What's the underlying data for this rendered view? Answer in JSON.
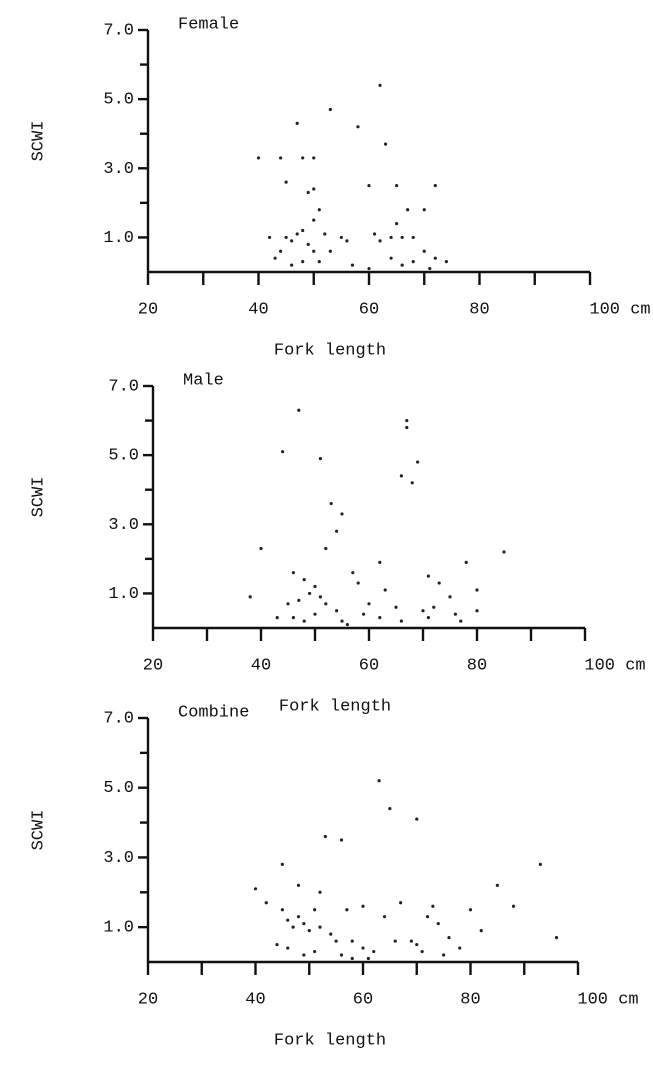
{
  "chart_data": [
    {
      "type": "scatter",
      "title": "Female",
      "x_label": "Fork length",
      "y_label": "SCWI",
      "color": "#222",
      "xlim": [
        20,
        100
      ],
      "ylim": [
        0,
        7
      ],
      "xticks": [
        20,
        40,
        60,
        80,
        {
          "value": 100,
          "label": "100 cm"
        }
      ],
      "xminorticks": [
        30,
        50,
        70,
        90
      ],
      "yticks": [
        {
          "value": 1,
          "label": "1.0"
        },
        {
          "value": 3,
          "label": "3.0"
        },
        {
          "value": 5,
          "label": "5.0"
        },
        {
          "value": 7,
          "label": "7.0"
        }
      ],
      "yminorticks": [
        2,
        4,
        6
      ],
      "x": [
        40,
        44,
        45,
        48,
        50,
        47,
        53,
        58,
        62,
        63,
        60,
        65,
        72,
        67,
        70,
        50,
        49,
        51,
        50,
        48,
        52,
        45,
        46,
        44,
        43,
        46,
        47,
        49,
        50,
        51,
        53,
        55,
        57,
        61,
        62,
        64,
        66,
        68,
        65,
        64,
        66,
        68,
        70,
        72,
        74,
        56,
        48,
        42,
        60,
        71
      ],
      "values": [
        3.3,
        3.3,
        2.6,
        3.3,
        3.3,
        4.3,
        4.7,
        4.2,
        5.4,
        3.7,
        2.5,
        2.5,
        2.5,
        1.8,
        1.8,
        2.4,
        2.3,
        1.8,
        1.5,
        1.2,
        1.1,
        1.0,
        0.9,
        0.6,
        0.4,
        0.2,
        1.1,
        0.8,
        0.6,
        0.3,
        0.6,
        1.0,
        0.2,
        1.1,
        0.9,
        1.0,
        1.0,
        1.0,
        1.4,
        0.4,
        0.2,
        0.3,
        0.6,
        0.4,
        0.3,
        0.9,
        0.3,
        1.0,
        0.1,
        0.1
      ]
    },
    {
      "type": "scatter",
      "title": "Male",
      "x_label": "Fork length",
      "y_label": "SCWI",
      "color": "#222",
      "xlim": [
        20,
        100
      ],
      "ylim": [
        0,
        7
      ],
      "xticks": [
        20,
        40,
        60,
        80,
        {
          "value": 100,
          "label": "100 cm"
        }
      ],
      "xminorticks": [
        30,
        50,
        70,
        90
      ],
      "yticks": [
        {
          "value": 1,
          "label": "1.0"
        },
        {
          "value": 3,
          "label": "3.0"
        },
        {
          "value": 5,
          "label": "5.0"
        },
        {
          "value": 7,
          "label": "7.0"
        }
      ],
      "yminorticks": [
        2,
        4,
        6
      ],
      "x": [
        44,
        47,
        51,
        53,
        55,
        54,
        67,
        67,
        66,
        68,
        69,
        40,
        52,
        62,
        71,
        78,
        85,
        80,
        46,
        48,
        50,
        49,
        47,
        51,
        45,
        43,
        46,
        48,
        50,
        52,
        54,
        55,
        57,
        58,
        60,
        59,
        62,
        63,
        65,
        66,
        70,
        71,
        72,
        73,
        75,
        76,
        77,
        80,
        38,
        56
      ],
      "values": [
        5.1,
        6.3,
        4.9,
        3.6,
        3.3,
        2.8,
        6.0,
        5.8,
        4.4,
        4.2,
        4.8,
        2.3,
        2.3,
        1.9,
        1.5,
        1.9,
        2.2,
        1.1,
        1.6,
        1.4,
        1.2,
        1.0,
        0.8,
        0.9,
        0.7,
        0.3,
        0.3,
        0.2,
        0.4,
        0.7,
        0.5,
        0.2,
        1.6,
        1.3,
        0.7,
        0.4,
        0.3,
        1.1,
        0.6,
        0.2,
        0.5,
        0.3,
        0.6,
        1.3,
        0.9,
        0.4,
        0.2,
        0.5,
        0.9,
        0.1
      ]
    },
    {
      "type": "scatter",
      "title": "Combine",
      "x_label": "Fork length",
      "y_label": "SCWI",
      "color": "#222",
      "xlim": [
        20,
        100
      ],
      "ylim": [
        0,
        7
      ],
      "xticks": [
        20,
        40,
        60,
        80,
        {
          "value": 100,
          "label": "100 cm"
        }
      ],
      "xminorticks": [
        30,
        50,
        70,
        90
      ],
      "yticks": [
        {
          "value": 1,
          "label": "1.0"
        },
        {
          "value": 3,
          "label": "3.0"
        },
        {
          "value": 5,
          "label": "5.0"
        },
        {
          "value": 7,
          "label": "7.0"
        }
      ],
      "yminorticks": [
        2,
        4,
        6
      ],
      "x": [
        63,
        65,
        70,
        53,
        56,
        45,
        48,
        52,
        60,
        67,
        73,
        80,
        85,
        93,
        96,
        40,
        42,
        45,
        46,
        47,
        48,
        49,
        50,
        51,
        52,
        54,
        55,
        57,
        58,
        60,
        62,
        64,
        66,
        69,
        70,
        71,
        72,
        74,
        76,
        78,
        44,
        46,
        49,
        51,
        56,
        58,
        61,
        75,
        82,
        88
      ],
      "values": [
        5.2,
        4.4,
        4.1,
        3.6,
        3.5,
        2.8,
        2.2,
        2.0,
        1.6,
        1.7,
        1.6,
        1.5,
        2.2,
        2.8,
        0.7,
        2.1,
        1.7,
        1.5,
        1.2,
        1.0,
        1.3,
        1.1,
        0.9,
        1.5,
        1.0,
        0.8,
        0.6,
        1.5,
        0.6,
        0.4,
        0.3,
        1.3,
        0.6,
        0.6,
        0.5,
        0.3,
        1.3,
        1.1,
        0.7,
        0.4,
        0.5,
        0.4,
        0.2,
        0.3,
        0.2,
        0.1,
        0.1,
        0.2,
        0.9,
        1.6
      ]
    }
  ]
}
